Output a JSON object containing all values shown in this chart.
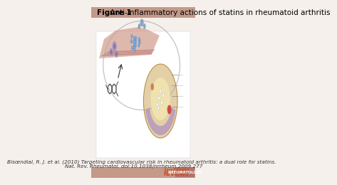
{
  "title_bold": "Figure 1",
  "title_regular": " Anti-inflammatory actions of statins in rheumatoid arthritis",
  "citation_line1": "Bisœndial, R. J. et al. (2010) Targeting cardiovascular risk in rheumatoid arthritis: a dual role for statins.",
  "citation_line2": "Nat. Rev. Rheumatol. doi:10.1038/nrrheum.2009.277",
  "bg_top_color": "#c4998a",
  "bg_bottom_color": "#c4998a",
  "bg_main_color": "#f5f0ec",
  "nature_text_color": "#c8502a",
  "rheumatology_bg": "#b5726a",
  "title_fontsize": 7.5,
  "citation_fontsize": 5.2
}
